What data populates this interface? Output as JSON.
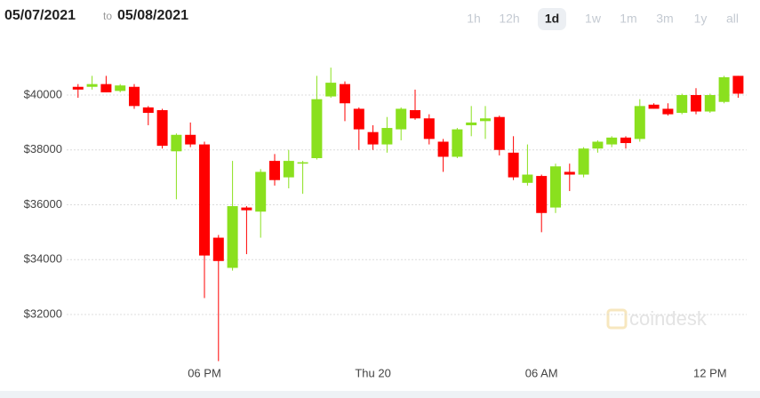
{
  "chart_data": {
    "type": "candlestick",
    "date_from": "05/07/2021",
    "date_connector": "to",
    "date_to": "05/08/2021",
    "range_buttons": [
      "1h",
      "12h",
      "1d",
      "1w",
      "1m",
      "3m",
      "1y",
      "all"
    ],
    "selected_range": "1d",
    "watermark": "coindesk",
    "categories": [
      null,
      null,
      null,
      null,
      null,
      null,
      null,
      null,
      null,
      "06 PM",
      null,
      null,
      null,
      null,
      null,
      null,
      null,
      null,
      null,
      null,
      null,
      "Thu 20",
      null,
      null,
      null,
      null,
      null,
      null,
      null,
      null,
      null,
      null,
      null,
      "06 AM",
      null,
      null,
      null,
      null,
      null,
      null,
      null,
      null,
      null,
      null,
      null,
      "12 PM",
      null,
      null
    ],
    "open": [
      40300,
      40300,
      40400,
      40150,
      40300,
      39550,
      39450,
      37950,
      38550,
      38200,
      34800,
      33700,
      35900,
      35750,
      37600,
      37000,
      37500,
      37700,
      39950,
      40400,
      39500,
      38650,
      38200,
      38750,
      39450,
      39150,
      38300,
      37750,
      38900,
      39050,
      39200,
      37900,
      36800,
      37050,
      35900,
      37200,
      37100,
      38050,
      38200,
      38450,
      38400,
      39650,
      39500,
      39350,
      40000,
      39400,
      39750,
      40700
    ],
    "high": [
      40400,
      40700,
      40700,
      40400,
      40400,
      39600,
      39500,
      38600,
      39000,
      38300,
      34900,
      37600,
      35950,
      37300,
      37850,
      38000,
      37600,
      40700,
      41000,
      40500,
      39550,
      38900,
      39200,
      39550,
      40200,
      39300,
      38400,
      38800,
      39600,
      39600,
      39250,
      38500,
      38200,
      37100,
      37500,
      37500,
      38100,
      38350,
      38500,
      38500,
      39850,
      39700,
      39700,
      40050,
      40250,
      40050,
      40700,
      40700
    ],
    "low": [
      39900,
      40200,
      40100,
      40100,
      39500,
      38900,
      38050,
      36200,
      38100,
      32600,
      30300,
      33600,
      34200,
      34800,
      36700,
      36600,
      36400,
      37650,
      39900,
      39050,
      38000,
      38000,
      37900,
      38350,
      39100,
      38200,
      37200,
      37700,
      38500,
      38400,
      37800,
      36900,
      36700,
      35000,
      35700,
      36500,
      37000,
      37900,
      38100,
      38050,
      38300,
      39500,
      39250,
      39300,
      39300,
      39350,
      39700,
      39900
    ],
    "close": [
      40200,
      40400,
      40100,
      40350,
      39600,
      39350,
      38150,
      38550,
      38200,
      34150,
      33950,
      35950,
      35800,
      37200,
      36900,
      37600,
      37550,
      39850,
      40450,
      39700,
      38750,
      38200,
      38800,
      39500,
      39150,
      38400,
      37750,
      38750,
      39000,
      39150,
      38000,
      37000,
      37100,
      35700,
      37400,
      37100,
      38050,
      38300,
      38450,
      38250,
      39600,
      39500,
      39300,
      40000,
      39400,
      40000,
      40650,
      40050
    ],
    "up_color": "#8ae01e",
    "down_color": "#ff0000",
    "ylim": [
      30000,
      42000
    ],
    "yticks": [
      {
        "value": 32000,
        "label": "$32000"
      },
      {
        "value": 34000,
        "label": "$34000"
      },
      {
        "value": 36000,
        "label": "$36000"
      },
      {
        "value": 38000,
        "label": "$38000"
      },
      {
        "value": 40000,
        "label": "$40000"
      }
    ],
    "grid": true
  }
}
